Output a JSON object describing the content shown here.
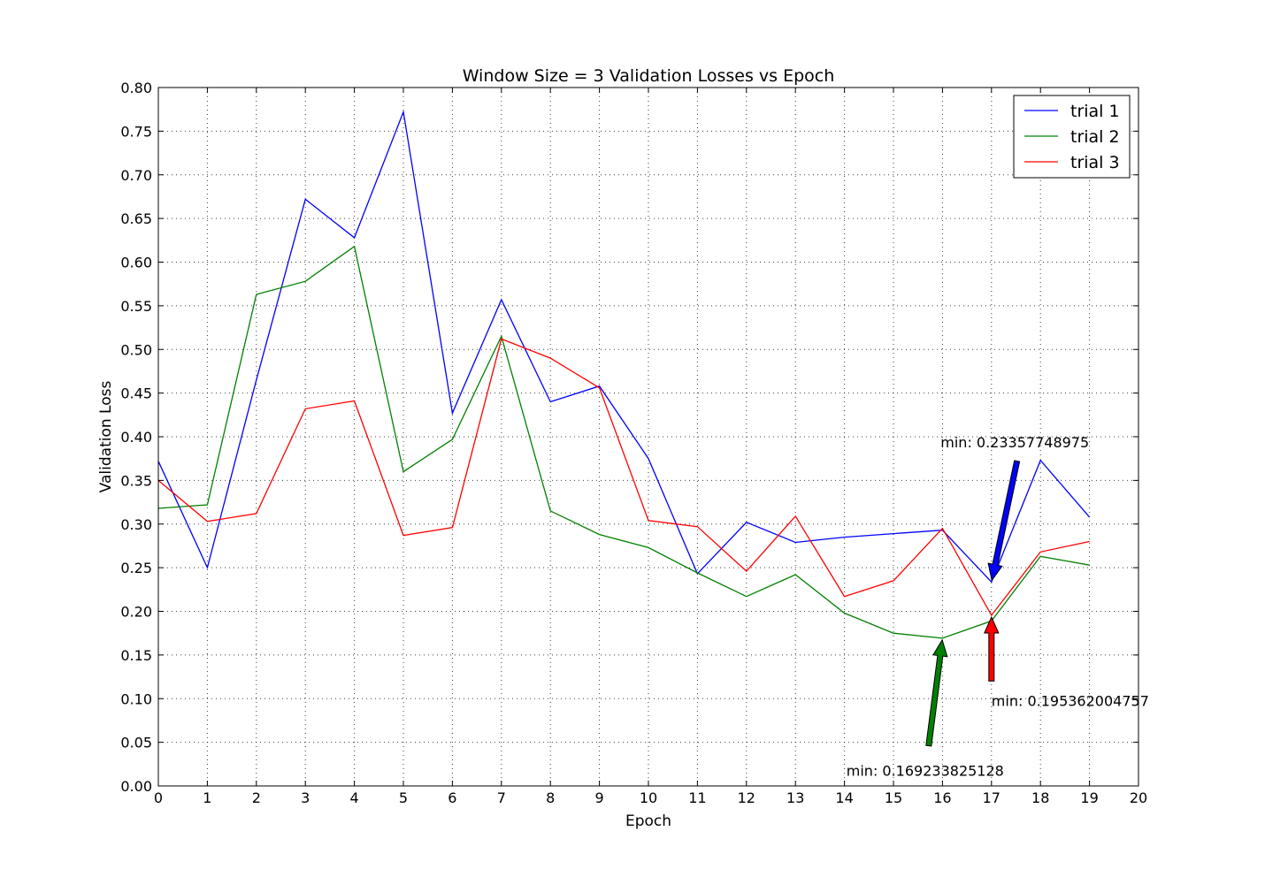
{
  "chart_data": {
    "type": "line",
    "title": "Window Size = 3 Validation Losses vs Epoch",
    "xlabel": "Epoch",
    "ylabel": "Validation Loss",
    "xlim": [
      0,
      20
    ],
    "ylim": [
      0,
      0.8
    ],
    "xticks": [
      "0",
      "1",
      "2",
      "3",
      "4",
      "5",
      "6",
      "7",
      "8",
      "9",
      "10",
      "11",
      "12",
      "13",
      "14",
      "15",
      "16",
      "17",
      "18",
      "19",
      "20"
    ],
    "yticks": [
      "0.00",
      "0.05",
      "0.10",
      "0.15",
      "0.20",
      "0.25",
      "0.30",
      "0.35",
      "0.40",
      "0.45",
      "0.50",
      "0.55",
      "0.60",
      "0.65",
      "0.70",
      "0.75",
      "0.80"
    ],
    "grid": true,
    "legend_position": "top-right",
    "x": [
      0,
      1,
      2,
      3,
      4,
      5,
      6,
      7,
      8,
      9,
      10,
      11,
      12,
      13,
      14,
      15,
      16,
      17,
      18,
      19
    ],
    "series": [
      {
        "name": "trial 1",
        "color": "#0000ff",
        "values": [
          0.372,
          0.25,
          0.465,
          0.672,
          0.628,
          0.772,
          0.427,
          0.557,
          0.44,
          0.458,
          0.375,
          0.243,
          0.302,
          0.279,
          0.285,
          0.289,
          0.293,
          0.2336,
          0.373,
          0.308
        ]
      },
      {
        "name": "trial 2",
        "color": "#008000",
        "values": [
          0.318,
          0.322,
          0.563,
          0.578,
          0.618,
          0.36,
          0.397,
          0.515,
          0.315,
          0.288,
          0.273,
          0.244,
          0.217,
          0.242,
          0.198,
          0.175,
          0.1692,
          0.189,
          0.263,
          0.253
        ]
      },
      {
        "name": "trial 3",
        "color": "#ff0000",
        "values": [
          0.35,
          0.303,
          0.312,
          0.432,
          0.441,
          0.287,
          0.296,
          0.512,
          0.49,
          0.456,
          0.304,
          0.297,
          0.246,
          0.309,
          0.217,
          0.235,
          0.295,
          0.1954,
          0.268,
          0.28
        ]
      }
    ],
    "annotations": [
      {
        "text": "min: 0.23357748975",
        "series": "trial 1",
        "x": 17,
        "y": 0.2336,
        "text_x": 17.55,
        "text_y": 0.38,
        "color": "#0000ff"
      },
      {
        "text": "min: 0.169233825128",
        "series": "trial 2",
        "x": 16,
        "y": 0.1692,
        "text_x": 15.7,
        "text_y": 0.038,
        "color": "#008000"
      },
      {
        "text": "min: 0.195362004757",
        "series": "trial 3",
        "x": 17,
        "y": 0.1954,
        "text_x": 17.0,
        "text_y": 0.112,
        "color": "#ff0000"
      }
    ]
  }
}
